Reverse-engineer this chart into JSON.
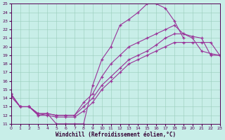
{
  "xlabel": "Windchill (Refroidissement éolien,°C)",
  "bg_color": "#c8eee8",
  "line_color": "#993399",
  "grid_color": "#99ccbb",
  "xmin": 0,
  "xmax": 23,
  "ymin": 11,
  "ymax": 25,
  "xticks": [
    0,
    1,
    2,
    3,
    4,
    5,
    6,
    7,
    8,
    9,
    10,
    11,
    12,
    13,
    14,
    15,
    16,
    17,
    18,
    19,
    20,
    21,
    22,
    23
  ],
  "yticks": [
    11,
    12,
    13,
    14,
    15,
    16,
    17,
    18,
    19,
    20,
    21,
    22,
    23,
    24,
    25
  ],
  "curve1_x": [
    0,
    1,
    2,
    3,
    4,
    5,
    6,
    7,
    8,
    9,
    10,
    11,
    12,
    13,
    14,
    15,
    16,
    17,
    18,
    19
  ],
  "curve1_y": [
    14.5,
    13.0,
    13.0,
    12.0,
    12.2,
    11.0,
    11.0,
    11.0,
    11.0,
    15.5,
    18.5,
    20.0,
    22.5,
    23.2,
    24.0,
    25.0,
    25.0,
    24.5,
    23.0,
    21.0
  ],
  "curve2_x": [
    0,
    1,
    2,
    3,
    4,
    5,
    6,
    7,
    8,
    9,
    10,
    11,
    12,
    13,
    14,
    15,
    16,
    17,
    18,
    19,
    20,
    21,
    22,
    23
  ],
  "curve2_y": [
    14.5,
    13.0,
    13.0,
    12.2,
    12.2,
    12.0,
    12.0,
    12.0,
    13.5,
    14.5,
    16.5,
    18.0,
    19.0,
    20.0,
    20.5,
    21.0,
    21.5,
    22.0,
    22.5,
    21.5,
    21.2,
    21.0,
    19.0,
    19.0
  ],
  "curve3_x": [
    0,
    1,
    2,
    3,
    4,
    5,
    6,
    7,
    8,
    9,
    10,
    11,
    12,
    13,
    14,
    15,
    16,
    17,
    18,
    19,
    20,
    21,
    22,
    23
  ],
  "curve3_y": [
    14.5,
    13.0,
    13.0,
    12.2,
    12.2,
    12.0,
    12.0,
    12.0,
    13.0,
    14.0,
    15.5,
    16.5,
    17.5,
    18.5,
    19.0,
    19.5,
    20.2,
    21.0,
    21.5,
    21.5,
    21.0,
    19.5,
    19.2,
    19.0
  ],
  "curve4_x": [
    0,
    1,
    2,
    3,
    4,
    5,
    6,
    7,
    8,
    9,
    10,
    11,
    12,
    13,
    14,
    15,
    16,
    17,
    18,
    19,
    20,
    21,
    22,
    23
  ],
  "curve4_y": [
    14.2,
    13.0,
    13.0,
    12.0,
    12.0,
    11.8,
    11.8,
    11.8,
    12.5,
    13.5,
    15.0,
    16.0,
    17.0,
    18.0,
    18.5,
    19.0,
    19.5,
    20.0,
    20.5,
    20.5,
    20.5,
    20.5,
    20.5,
    19.0
  ]
}
